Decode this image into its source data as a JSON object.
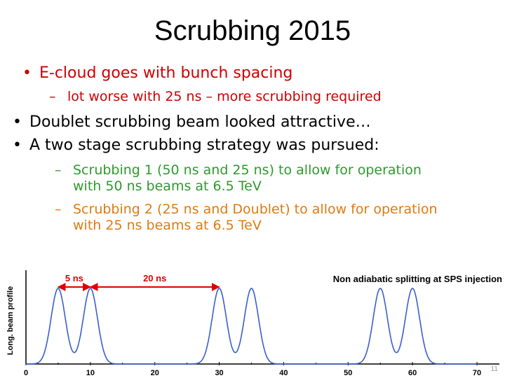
{
  "slide": {
    "title": "Scrubbing 2015",
    "bullets": [
      {
        "marker": "•",
        "text": "E-cloud goes with bunch spacing",
        "color": "#cc0000"
      },
      {
        "marker": "–",
        "text": "lot worse with 25 ns – more scrubbing required",
        "color": "#cc0000"
      },
      {
        "marker": "•",
        "text": "Doublet scrubbing beam looked attractive…",
        "color": "#000000"
      },
      {
        "marker": "•",
        "text": "A two stage scrubbing strategy was pursued:",
        "color": "#000000"
      },
      {
        "marker": "–",
        "line1": "Scrubbing 1 (50 ns and 25 ns) to allow for operation",
        "line2": "with 50 ns beams at 6.5 TeV",
        "color": "#2e9a2e"
      },
      {
        "marker": "–",
        "line1": "Scrubbing 2 (25 ns and Doublet) to allow for operation",
        "line2": "with 25 ns beams at 6.5 TeV",
        "color": "#e07a10"
      }
    ],
    "page_number": "11"
  },
  "chart_data": {
    "type": "line",
    "title": "Non adiabatic splitting at SPS injection",
    "xlabel": "",
    "ylabel": "Long. beam profile",
    "xlim": [
      0,
      70
    ],
    "x_ticks": [
      "0",
      "10",
      "20",
      "30",
      "40",
      "50",
      "60",
      "70"
    ],
    "peaks_x": [
      5,
      10,
      30,
      35,
      55,
      60
    ],
    "series_color": "#3a5fcd",
    "annotations": [
      {
        "label": "5 ns",
        "from": 5,
        "to": 10,
        "color": "#dd0000"
      },
      {
        "label": "20 ns",
        "from": 10,
        "to": 30,
        "color": "#dd0000"
      }
    ],
    "grid": false
  }
}
